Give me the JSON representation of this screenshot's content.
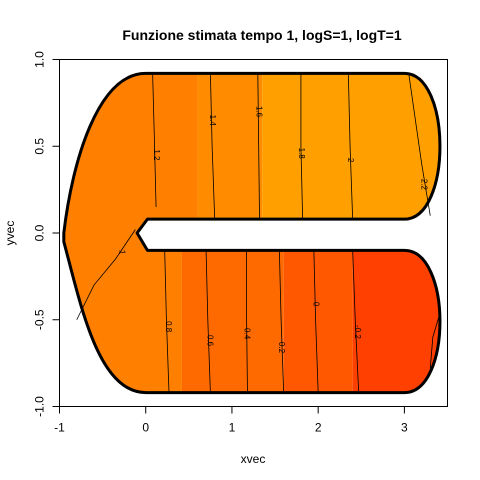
{
  "chart_data": {
    "type": "heatmap",
    "title": "Funzione stimata tempo 1, logS=1, logT=1",
    "xlabel": "xvec",
    "ylabel": "yvec",
    "xlim": [
      -1,
      3.5
    ],
    "ylim": [
      -1,
      1
    ],
    "xticks": [
      "-1",
      "0",
      "1",
      "2",
      "3"
    ],
    "xtick_values": [
      -1,
      0,
      1,
      2,
      3
    ],
    "yticks": [
      "-1.0",
      "-0.5",
      "0.0",
      "0.5",
      "1.0"
    ],
    "ytick_values": [
      -1,
      -0.5,
      0,
      0.5,
      1
    ],
    "domain": "horseshoe",
    "color_bands": {
      "upper_arm": [
        {
          "x0": -1.0,
          "x1": 0.6,
          "color": "#FF8000"
        },
        {
          "x0": 0.6,
          "x1": 1.35,
          "color": "#FF8C00"
        },
        {
          "x0": 1.35,
          "x1": 3.5,
          "color": "#FFA000"
        }
      ],
      "lower_arm": [
        {
          "x0": -1.0,
          "x1": 0.42,
          "color": "#FF8000"
        },
        {
          "x0": 0.42,
          "x1": 1.6,
          "color": "#FF6A00"
        },
        {
          "x0": 1.6,
          "x1": 2.4,
          "color": "#FF5800"
        },
        {
          "x0": 2.4,
          "x1": 3.5,
          "color": "#FF4000"
        }
      ]
    },
    "contours_upper": [
      {
        "label": "1.2",
        "points": [
          [
            0.08,
            0.92
          ],
          [
            0.1,
            0.55
          ],
          [
            0.12,
            0.15
          ]
        ],
        "label_at": [
          0.12,
          0.45
        ]
      },
      {
        "label": "1.4",
        "points": [
          [
            0.75,
            0.92
          ],
          [
            0.77,
            0.5
          ],
          [
            0.8,
            0.08
          ]
        ],
        "label_at": [
          0.77,
          0.65
        ]
      },
      {
        "label": "1.6",
        "points": [
          [
            1.3,
            0.92
          ],
          [
            1.31,
            0.5
          ],
          [
            1.32,
            0.08
          ]
        ],
        "label_at": [
          1.31,
          0.7
        ]
      },
      {
        "label": "1.8",
        "points": [
          [
            1.8,
            0.92
          ],
          [
            1.8,
            0.5
          ],
          [
            1.82,
            0.08
          ]
        ],
        "label_at": [
          1.8,
          0.46
        ]
      },
      {
        "label": "2",
        "points": [
          [
            2.35,
            0.92
          ],
          [
            2.37,
            0.5
          ],
          [
            2.4,
            0.08
          ]
        ],
        "label_at": [
          2.37,
          0.42
        ]
      },
      {
        "label": "2.2",
        "points": [
          [
            3.05,
            0.92
          ],
          [
            3.2,
            0.4
          ],
          [
            3.3,
            0.1
          ]
        ],
        "label_at": [
          3.22,
          0.28
        ]
      }
    ],
    "contours_lower": [
      {
        "label": "1",
        "points": [
          [
            -0.12,
            0.02
          ],
          [
            -0.35,
            -0.15
          ],
          [
            -0.6,
            -0.3
          ],
          [
            -0.8,
            -0.5
          ]
        ],
        "label_at": [
          -0.28,
          -0.11
        ]
      },
      {
        "label": "0.8",
        "points": [
          [
            0.22,
            -0.1
          ],
          [
            0.24,
            -0.5
          ],
          [
            0.27,
            -0.92
          ]
        ],
        "label_at": [
          0.26,
          -0.54
        ]
      },
      {
        "label": "0.6",
        "points": [
          [
            0.7,
            -0.1
          ],
          [
            0.72,
            -0.5
          ],
          [
            0.75,
            -0.92
          ]
        ],
        "label_at": [
          0.74,
          -0.62
        ]
      },
      {
        "label": "0.4",
        "points": [
          [
            1.17,
            -0.1
          ],
          [
            1.17,
            -0.5
          ],
          [
            1.18,
            -0.92
          ]
        ],
        "label_at": [
          1.17,
          -0.58
        ]
      },
      {
        "label": "0.2",
        "points": [
          [
            1.55,
            -0.1
          ],
          [
            1.57,
            -0.5
          ],
          [
            1.6,
            -0.92
          ]
        ],
        "label_at": [
          1.57,
          -0.66
        ]
      },
      {
        "label": "0",
        "points": [
          [
            1.95,
            -0.1
          ],
          [
            1.97,
            -0.5
          ],
          [
            2.0,
            -0.92
          ]
        ],
        "label_at": [
          1.97,
          -0.41
        ]
      },
      {
        "label": "-0.2",
        "points": [
          [
            2.4,
            -0.1
          ],
          [
            2.43,
            -0.5
          ],
          [
            2.47,
            -0.92
          ]
        ],
        "label_at": [
          2.45,
          -0.57
        ]
      },
      {
        "label": "",
        "points": [
          [
            3.3,
            -0.78
          ],
          [
            3.33,
            -0.6
          ],
          [
            3.42,
            -0.45
          ]
        ],
        "label_at": null
      }
    ]
  }
}
